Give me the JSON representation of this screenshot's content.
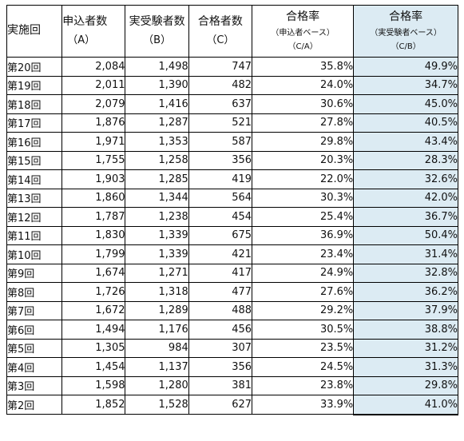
{
  "headers": {
    "round": "実施回",
    "applicants": {
      "title": "申込者数",
      "sub": "（A）"
    },
    "examinees": {
      "title": "実受験者数",
      "sub": "（B）"
    },
    "passers": {
      "title": "合格者数",
      "sub": "（C）"
    },
    "rate_app": {
      "title": "合格率",
      "basis": "（申込者ベース）",
      "formula": "（C/A）"
    },
    "rate_exam": {
      "title": "合格率",
      "basis": "（実受験者ベース）",
      "formula": "（C/B）"
    }
  },
  "highlight_color": "#dcebf3",
  "rows": [
    {
      "round": "第20回",
      "applicants": "2,084",
      "examinees": "1,498",
      "passers": "747",
      "rate_app": "35.8%",
      "rate_exam": "49.9%"
    },
    {
      "round": "第19回",
      "applicants": "2,011",
      "examinees": "1,390",
      "passers": "482",
      "rate_app": "24.0%",
      "rate_exam": "34.7%"
    },
    {
      "round": "第18回",
      "applicants": "2,079",
      "examinees": "1,416",
      "passers": "637",
      "rate_app": "30.6%",
      "rate_exam": "45.0%"
    },
    {
      "round": "第17回",
      "applicants": "1,876",
      "examinees": "1,287",
      "passers": "521",
      "rate_app": "27.8%",
      "rate_exam": "40.5%"
    },
    {
      "round": "第16回",
      "applicants": "1,971",
      "examinees": "1,353",
      "passers": "587",
      "rate_app": "29.8%",
      "rate_exam": "43.4%"
    },
    {
      "round": "第15回",
      "applicants": "1,755",
      "examinees": "1,258",
      "passers": "356",
      "rate_app": "20.3%",
      "rate_exam": "28.3%"
    },
    {
      "round": "第14回",
      "applicants": "1,903",
      "examinees": "1,285",
      "passers": "419",
      "rate_app": "22.0%",
      "rate_exam": "32.6%"
    },
    {
      "round": "第13回",
      "applicants": "1,860",
      "examinees": "1,344",
      "passers": "564",
      "rate_app": "30.3%",
      "rate_exam": "42.0%"
    },
    {
      "round": "第12回",
      "applicants": "1,787",
      "examinees": "1,238",
      "passers": "454",
      "rate_app": "25.4%",
      "rate_exam": "36.7%"
    },
    {
      "round": "第11回",
      "applicants": "1,830",
      "examinees": "1,339",
      "passers": "675",
      "rate_app": "36.9%",
      "rate_exam": "50.4%"
    },
    {
      "round": "第10回",
      "applicants": "1,799",
      "examinees": "1,339",
      "passers": "421",
      "rate_app": "23.4%",
      "rate_exam": "31.4%"
    },
    {
      "round": "第9回",
      "applicants": "1,674",
      "examinees": "1,271",
      "passers": "417",
      "rate_app": "24.9%",
      "rate_exam": "32.8%"
    },
    {
      "round": "第8回",
      "applicants": "1,726",
      "examinees": "1,318",
      "passers": "477",
      "rate_app": "27.6%",
      "rate_exam": "36.2%"
    },
    {
      "round": "第7回",
      "applicants": "1,672",
      "examinees": "1,289",
      "passers": "488",
      "rate_app": "29.2%",
      "rate_exam": "37.9%"
    },
    {
      "round": "第6回",
      "applicants": "1,494",
      "examinees": "1,176",
      "passers": "456",
      "rate_app": "30.5%",
      "rate_exam": "38.8%"
    },
    {
      "round": "第5回",
      "applicants": "1,305",
      "examinees": "984",
      "passers": "307",
      "rate_app": "23.5%",
      "rate_exam": "31.2%"
    },
    {
      "round": "第4回",
      "applicants": "1,454",
      "examinees": "1,137",
      "passers": "356",
      "rate_app": "24.5%",
      "rate_exam": "31.3%"
    },
    {
      "round": "第3回",
      "applicants": "1,598",
      "examinees": "1,280",
      "passers": "381",
      "rate_app": "23.8%",
      "rate_exam": "29.8%"
    },
    {
      "round": "第2回",
      "applicants": "1,852",
      "examinees": "1,528",
      "passers": "627",
      "rate_app": "33.9%",
      "rate_exam": "41.0%"
    }
  ]
}
